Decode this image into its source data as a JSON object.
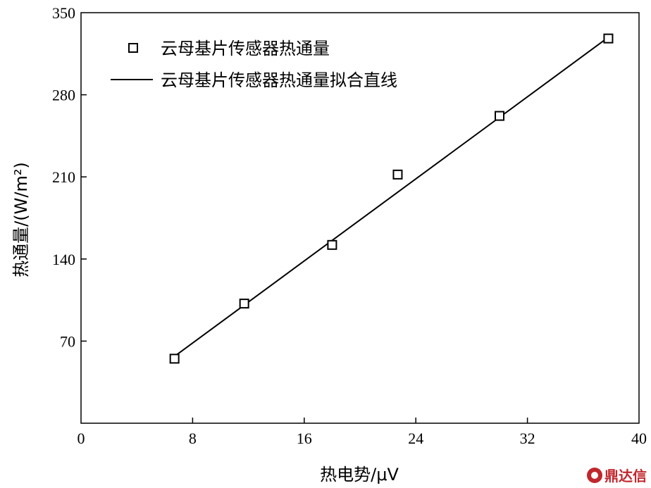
{
  "chart_data": {
    "type": "scatter",
    "title": "",
    "xlabel": "热电势/μV",
    "ylabel": "热通量/(W/m²)",
    "xlim": [
      0,
      40
    ],
    "ylim": [
      0,
      350
    ],
    "xticks": [
      0,
      8,
      16,
      24,
      32,
      40
    ],
    "yticks": [
      70,
      140,
      210,
      280,
      350
    ],
    "grid": false,
    "legend_position": "top-left",
    "series": [
      {
        "name": "云母基片传感器热通量",
        "kind": "scatter",
        "marker": "open-square",
        "color": "#000000",
        "x": [
          6.7,
          11.7,
          18.0,
          22.7,
          30.0,
          37.8
        ],
        "y": [
          55,
          102,
          152,
          212,
          262,
          328
        ]
      },
      {
        "name": "云母基片传感器热通量拟合直线",
        "kind": "line",
        "color": "#000000",
        "x": [
          6.7,
          37.8
        ],
        "y": [
          57,
          329
        ]
      }
    ]
  },
  "watermark": {
    "text": "鼎达信"
  }
}
